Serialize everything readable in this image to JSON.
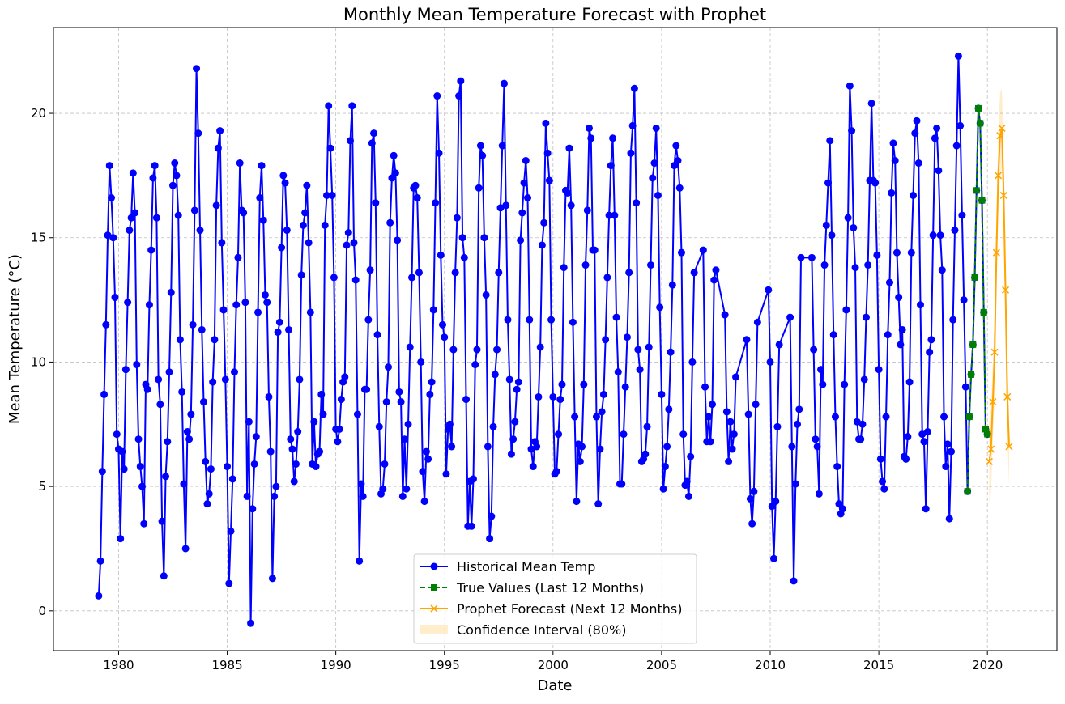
{
  "chart_data": {
    "type": "line",
    "title": "Monthly Mean Temperature Forecast with Prophet",
    "xlabel": "Date",
    "ylabel": "Mean Temperature (°C)",
    "xlim": [
      1977.0,
      2023.2
    ],
    "ylim": [
      -1.6,
      23.45
    ],
    "x_ticks": [
      1980,
      1985,
      1990,
      1995,
      2000,
      2005,
      2010,
      2015,
      2020
    ],
    "y_ticks": [
      0,
      5,
      10,
      15,
      20
    ],
    "grid": true,
    "legend_position": "bottom-center",
    "colors": {
      "historical": "#0000ff",
      "true": "#008000",
      "forecast": "#ffa500",
      "interval": "#ffa500"
    },
    "series": [
      {
        "name": "Historical Mean Temp",
        "style": "solid line, circle markers",
        "monthly": [
          {
            "year": 1979,
            "values": [
              0.6,
              2.0,
              5.6,
              8.7,
              11.5,
              15.1,
              17.9,
              16.6,
              15.0,
              12.6,
              7.1,
              6.5
            ]
          },
          {
            "year": 1980,
            "values": [
              2.9,
              6.4,
              5.7,
              9.7,
              12.4,
              15.3,
              15.8,
              17.6,
              16.0,
              9.9,
              6.9,
              5.8
            ]
          },
          {
            "year": 1981,
            "values": [
              5.0,
              3.5,
              9.1,
              8.9,
              12.3,
              14.5,
              17.4,
              17.9,
              15.8,
              9.3,
              8.3,
              3.6
            ]
          },
          {
            "year": 1982,
            "values": [
              1.4,
              5.4,
              6.8,
              9.6,
              12.8,
              17.1,
              18.0,
              17.5,
              15.9,
              10.9,
              8.8,
              5.1
            ]
          },
          {
            "year": 1983,
            "values": [
              2.5,
              7.2,
              6.9,
              7.9,
              11.5,
              16.1,
              21.8,
              19.2,
              15.3,
              11.3,
              8.4,
              6.0
            ]
          },
          {
            "year": 1984,
            "values": [
              4.3,
              4.7,
              5.7,
              9.2,
              10.9,
              16.3,
              18.6,
              19.3,
              14.8,
              12.1,
              9.3,
              5.8
            ]
          },
          {
            "year": 1985,
            "values": [
              1.1,
              3.2,
              5.3,
              9.6,
              12.3,
              14.2,
              18.0,
              16.1,
              16.0,
              12.4,
              4.6,
              7.6
            ]
          },
          {
            "year": 1986,
            "values": [
              -0.5,
              4.1,
              5.9,
              7.0,
              12.0,
              16.6,
              17.9,
              15.7,
              12.7,
              12.4,
              8.6,
              6.4
            ]
          },
          {
            "year": 1987,
            "values": [
              1.3,
              4.6,
              5.0,
              11.2,
              11.6,
              14.6,
              17.5,
              17.2,
              15.3,
              11.3,
              6.9,
              6.5
            ]
          },
          {
            "year": 1988,
            "values": [
              5.2,
              5.9,
              7.2,
              9.3,
              13.5,
              15.5,
              16.0,
              17.1,
              14.8,
              12.0,
              5.9,
              7.6
            ]
          },
          {
            "year": 1989,
            "values": [
              5.8,
              6.3,
              6.4,
              8.7,
              7.9,
              15.5,
              16.7,
              20.3,
              18.6,
              16.7,
              13.4,
              7.3
            ]
          },
          {
            "year": 1990,
            "values": [
              6.8,
              7.3,
              8.5,
              9.2,
              9.4,
              14.7,
              15.2,
              18.9,
              20.3,
              14.8,
              13.3,
              7.9
            ]
          },
          {
            "year": 1991,
            "values": [
              2.0,
              5.1,
              4.6,
              8.9,
              8.9,
              11.7,
              13.7,
              18.8,
              19.2,
              16.4,
              11.1,
              7.4
            ]
          },
          {
            "year": 1992,
            "values": [
              4.7,
              4.9,
              5.9,
              8.4,
              9.8,
              15.6,
              17.4,
              18.3,
              17.6,
              14.9,
              8.8,
              8.4
            ]
          },
          {
            "year": 1993,
            "values": [
              4.6,
              6.9,
              4.9,
              7.5,
              10.6,
              13.4,
              17.0,
              17.1,
              16.6,
              13.6,
              10.0,
              5.6
            ]
          },
          {
            "year": 1994,
            "values": [
              4.4,
              6.4,
              6.1,
              8.7,
              9.2,
              12.1,
              16.4,
              20.7,
              18.4,
              14.3,
              11.5,
              11.0
            ]
          },
          {
            "year": 1995,
            "values": [
              5.5,
              7.3,
              7.5,
              6.6,
              10.5,
              13.6,
              15.8,
              20.7,
              21.3,
              15.0,
              14.2,
              8.5
            ]
          },
          {
            "year": 1996,
            "values": [
              3.4,
              5.2,
              3.4,
              5.3,
              9.9,
              10.5,
              17.0,
              18.7,
              18.3,
              15.0,
              12.7,
              6.6
            ]
          },
          {
            "year": 1997,
            "values": [
              2.9,
              3.8,
              7.4,
              9.5,
              10.5,
              13.6,
              16.2,
              18.7,
              21.2,
              16.3,
              11.7,
              9.3
            ]
          },
          {
            "year": 1998,
            "values": [
              6.3,
              6.9,
              7.6,
              8.9,
              9.2,
              14.9,
              16.0,
              17.2,
              18.1,
              16.6,
              11.7,
              6.5
            ]
          },
          {
            "year": 1999,
            "values": [
              5.8,
              6.8,
              6.6,
              8.6,
              10.6,
              14.7,
              15.6,
              19.6,
              18.4,
              17.3,
              11.7,
              8.6
            ]
          },
          {
            "year": 2000,
            "values": [
              5.5,
              5.6,
              7.1,
              8.5,
              9.1,
              13.8,
              16.9,
              16.8,
              18.6,
              16.3,
              11.6,
              7.8
            ]
          },
          {
            "year": 2001,
            "values": [
              4.4,
              6.7,
              6.0,
              6.6,
              9.1,
              13.9,
              16.1,
              19.4,
              19.0,
              14.5,
              14.5,
              7.8
            ]
          },
          {
            "year": 2002,
            "values": [
              4.3,
              6.5,
              8.0,
              8.7,
              10.9,
              13.4,
              15.9,
              17.9,
              19.0,
              15.9,
              11.8,
              9.6
            ]
          },
          {
            "year": 2003,
            "values": [
              5.1,
              5.1,
              7.1,
              9.0,
              11.0,
              13.6,
              18.4,
              19.5,
              21.0,
              16.4,
              10.5,
              9.7
            ]
          },
          {
            "year": 2004,
            "values": [
              6.0,
              6.1,
              6.3,
              7.4,
              10.6,
              13.9,
              17.4,
              18.0,
              19.4,
              16.7,
              12.2,
              8.7
            ]
          },
          {
            "year": 2005,
            "values": [
              4.9,
              5.8,
              6.6,
              8.1,
              10.4,
              13.1,
              17.9,
              18.7,
              18.1,
              17.0,
              14.4,
              7.1
            ]
          },
          {
            "year": 2006,
            "values": [
              5.05,
              5.2,
              4.6,
              6.2,
              10.0,
              13.6,
              null,
              null,
              null,
              null,
              14.5,
              9.0
            ]
          },
          {
            "year": 2007,
            "values": [
              6.8,
              7.8,
              6.8,
              8.3,
              13.3,
              13.7,
              null,
              null,
              null,
              null,
              11.9,
              8.0
            ]
          },
          {
            "year": 2008,
            "values": [
              6.0,
              7.6,
              6.5,
              7.1,
              9.4,
              null,
              null,
              null,
              null,
              null,
              10.9,
              7.9
            ]
          },
          {
            "year": 2009,
            "values": [
              4.5,
              3.5,
              4.8,
              8.3,
              11.6,
              null,
              null,
              null,
              null,
              null,
              12.9,
              10.0
            ]
          },
          {
            "year": 2010,
            "values": [
              4.2,
              2.1,
              4.4,
              7.4,
              10.7,
              null,
              null,
              null,
              null,
              null,
              11.8,
              6.6
            ]
          },
          {
            "year": 2011,
            "values": [
              1.2,
              5.1,
              7.5,
              8.1,
              14.2,
              null,
              null,
              null,
              null,
              null,
              14.2,
              10.5
            ]
          },
          {
            "year": 2012,
            "values": [
              6.9,
              6.6,
              4.7,
              9.7,
              9.1,
              13.9,
              15.5,
              17.2,
              18.9,
              15.1,
              11.1,
              7.8
            ]
          },
          {
            "year": 2013,
            "values": [
              5.8,
              4.3,
              3.9,
              4.1,
              9.1,
              12.1,
              15.8,
              21.1,
              19.3,
              15.4,
              13.8,
              7.6
            ]
          },
          {
            "year": 2014,
            "values": [
              6.9,
              6.9,
              7.5,
              9.3,
              11.8,
              13.9,
              17.3,
              20.4,
              17.3,
              17.2,
              14.3,
              9.7
            ]
          },
          {
            "year": 2015,
            "values": [
              6.1,
              5.2,
              4.9,
              7.8,
              11.1,
              13.2,
              16.8,
              18.8,
              18.1,
              14.4,
              12.6,
              10.7
            ]
          },
          {
            "year": 2016,
            "values": [
              11.3,
              6.2,
              6.1,
              7.0,
              9.2,
              14.4,
              16.7,
              19.2,
              19.7,
              18.0,
              12.3,
              7.1
            ]
          },
          {
            "year": 2017,
            "values": [
              6.8,
              4.1,
              7.2,
              10.4,
              10.9,
              15.1,
              19.0,
              19.4,
              17.7,
              15.1,
              13.7,
              7.8
            ]
          },
          {
            "year": 2018,
            "values": [
              5.8,
              6.7,
              3.7,
              6.4,
              11.7,
              15.3,
              18.7,
              22.3,
              19.5,
              15.9,
              12.5,
              9.0
            ]
          },
          {
            "year": 2019,
            "values": [
              4.8,
              7.8,
              9.5,
              10.7,
              13.4,
              16.9,
              20.2,
              19.6,
              16.5,
              12.0,
              7.3,
              7.1
            ]
          }
        ]
      },
      {
        "name": "True Values (Last 12 Months)",
        "style": "dashed line, square markers",
        "year": 2019,
        "values": [
          4.8,
          7.8,
          9.5,
          10.7,
          13.4,
          16.9,
          20.2,
          19.6,
          16.5,
          12.0,
          7.3,
          7.1
        ]
      },
      {
        "name": "Prophet Forecast (Next 12 Months)",
        "style": "solid line, x markers",
        "year": 2020,
        "values": [
          6.0,
          6.5,
          8.4,
          10.4,
          14.4,
          17.5,
          19.1,
          19.4,
          16.7,
          12.9,
          8.6,
          6.6
        ],
        "lower": [
          4.3,
          4.8,
          6.8,
          8.8,
          12.8,
          15.9,
          17.5,
          17.8,
          15.1,
          11.3,
          7.0,
          5.0
        ],
        "upper": [
          7.6,
          8.1,
          10.0,
          12.0,
          16.0,
          19.1,
          20.8,
          21.0,
          18.3,
          14.5,
          10.2,
          8.2
        ]
      }
    ],
    "interval_label": "Confidence Interval (80%)"
  }
}
